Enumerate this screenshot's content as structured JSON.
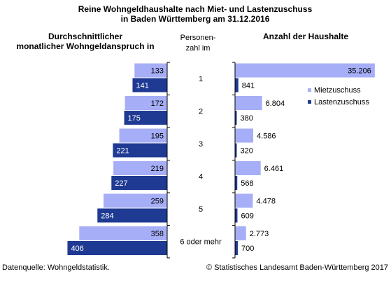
{
  "chart_data": {
    "type": "bar",
    "title_line1": "Reine Wohngeldhaushalte nach Miet- und Lastenzuschuss",
    "title_line2": "in Baden Württemberg am 31.12.2016",
    "left_panel": {
      "title_line1": "Durchschnittlicher",
      "title_line2": "monatlicher Wohngeldanspruch in",
      "xlim": [
        0,
        450
      ]
    },
    "center_label": {
      "line1": "Personen-",
      "line2": "zahl im"
    },
    "right_panel": {
      "title": "Anzahl der Haushalte",
      "xlim": [
        0,
        37000
      ]
    },
    "categories": [
      "1",
      "2",
      "3",
      "4",
      "5",
      "6 oder mehr"
    ],
    "series": [
      {
        "name": "Mietzuschuss",
        "color": "#a6aef7",
        "left_values": [
          133,
          172,
          195,
          219,
          259,
          358
        ],
        "left_labels": [
          "133",
          "172",
          "195",
          "219",
          "259",
          "358"
        ],
        "right_values": [
          35206,
          6804,
          4586,
          6461,
          4478,
          2773
        ],
        "right_labels": [
          "35.206",
          "6.804",
          "4.586",
          "6.461",
          "4.478",
          "2.773"
        ]
      },
      {
        "name": "Lastenzuschuss",
        "color": "#1f3a93",
        "left_values": [
          141,
          175,
          221,
          227,
          284,
          406
        ],
        "left_labels": [
          "141",
          "175",
          "221",
          "227",
          "284",
          "406"
        ],
        "right_values": [
          841,
          380,
          320,
          568,
          609,
          700
        ],
        "right_labels": [
          "841",
          "380",
          "320",
          "568",
          "609",
          "700"
        ]
      }
    ],
    "footer_left": "Datenquelle: Wohngeldstatistik.",
    "footer_right": "© Statistisches Landesamt Baden-Württemberg 2017"
  }
}
